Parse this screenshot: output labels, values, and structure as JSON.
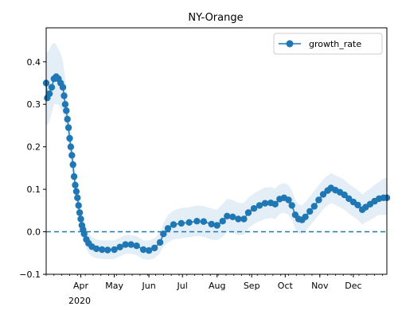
{
  "chart_data": {
    "type": "line",
    "title": "NY-Orange",
    "xlabel": "",
    "ylabel": "",
    "x_axis": {
      "type": "date",
      "range": [
        "2020-03-01",
        "2020-12-31"
      ],
      "ticks": [
        {
          "date": "2020-04-01",
          "label": "Apr"
        },
        {
          "date": "2020-05-01",
          "label": "May"
        },
        {
          "date": "2020-06-01",
          "label": "Jun"
        },
        {
          "date": "2020-07-01",
          "label": "Jul"
        },
        {
          "date": "2020-08-01",
          "label": "Aug"
        },
        {
          "date": "2020-09-01",
          "label": "Sep"
        },
        {
          "date": "2020-10-01",
          "label": "Oct"
        },
        {
          "date": "2020-11-01",
          "label": "Nov"
        },
        {
          "date": "2020-12-01",
          "label": "Dec"
        }
      ],
      "year_label": "2020"
    },
    "ylim": [
      -0.1,
      0.48
    ],
    "yticks": [
      -0.1,
      0.0,
      0.1,
      0.2,
      0.3,
      0.4
    ],
    "ytick_labels": [
      "−0.1",
      "0.0",
      "0.1",
      "0.2",
      "0.3",
      "0.4"
    ],
    "reference_line": {
      "y": 0.0,
      "style": "dashed",
      "color": "#1f77b4"
    },
    "legend": {
      "position": "top-right",
      "entries": [
        "growth_rate"
      ]
    },
    "grid": false,
    "series": [
      {
        "name": "growth_rate",
        "color": "#1f77b4",
        "band_color": "#1f77b4",
        "points": [
          {
            "x": "2020-03-01",
            "y": 0.35,
            "lo": 0.26,
            "hi": 0.43
          },
          {
            "x": "2020-03-02",
            "y": 0.315,
            "lo": 0.25,
            "hi": 0.42
          },
          {
            "x": "2020-03-04",
            "y": 0.325,
            "lo": 0.26,
            "hi": 0.43
          },
          {
            "x": "2020-03-06",
            "y": 0.34,
            "lo": 0.28,
            "hi": 0.44
          },
          {
            "x": "2020-03-08",
            "y": 0.36,
            "lo": 0.3,
            "hi": 0.445
          },
          {
            "x": "2020-03-10",
            "y": 0.365,
            "lo": 0.3,
            "hi": 0.44
          },
          {
            "x": "2020-03-12",
            "y": 0.36,
            "lo": 0.3,
            "hi": 0.43
          },
          {
            "x": "2020-03-14",
            "y": 0.35,
            "lo": 0.29,
            "hi": 0.42
          },
          {
            "x": "2020-03-16",
            "y": 0.34,
            "lo": 0.28,
            "hi": 0.4
          },
          {
            "x": "2020-03-17",
            "y": 0.32,
            "lo": 0.27,
            "hi": 0.38
          },
          {
            "x": "2020-03-18",
            "y": 0.3,
            "lo": 0.25,
            "hi": 0.36
          },
          {
            "x": "2020-03-19",
            "y": 0.285,
            "lo": 0.24,
            "hi": 0.34
          },
          {
            "x": "2020-03-20",
            "y": 0.265,
            "lo": 0.22,
            "hi": 0.32
          },
          {
            "x": "2020-03-21",
            "y": 0.245,
            "lo": 0.2,
            "hi": 0.29
          },
          {
            "x": "2020-03-22",
            "y": 0.22,
            "lo": 0.18,
            "hi": 0.27
          },
          {
            "x": "2020-03-23",
            "y": 0.2,
            "lo": 0.16,
            "hi": 0.245
          },
          {
            "x": "2020-03-24",
            "y": 0.18,
            "lo": 0.14,
            "hi": 0.22
          },
          {
            "x": "2020-03-25",
            "y": 0.158,
            "lo": 0.12,
            "hi": 0.2
          },
          {
            "x": "2020-03-26",
            "y": 0.13,
            "lo": 0.1,
            "hi": 0.17
          },
          {
            "x": "2020-03-27",
            "y": 0.11,
            "lo": 0.08,
            "hi": 0.145
          },
          {
            "x": "2020-03-28",
            "y": 0.095,
            "lo": 0.065,
            "hi": 0.125
          },
          {
            "x": "2020-03-29",
            "y": 0.08,
            "lo": 0.05,
            "hi": 0.11
          },
          {
            "x": "2020-03-30",
            "y": 0.062,
            "lo": 0.035,
            "hi": 0.09
          },
          {
            "x": "2020-03-31",
            "y": 0.045,
            "lo": 0.02,
            "hi": 0.075
          },
          {
            "x": "2020-04-01",
            "y": 0.03,
            "lo": 0.005,
            "hi": 0.058
          },
          {
            "x": "2020-04-02",
            "y": 0.015,
            "lo": -0.008,
            "hi": 0.042
          },
          {
            "x": "2020-04-03",
            "y": 0.005,
            "lo": -0.018,
            "hi": 0.03
          },
          {
            "x": "2020-04-04",
            "y": -0.005,
            "lo": -0.028,
            "hi": 0.02
          },
          {
            "x": "2020-04-06",
            "y": -0.018,
            "lo": -0.04,
            "hi": 0.006
          },
          {
            "x": "2020-04-08",
            "y": -0.027,
            "lo": -0.05,
            "hi": -0.003
          },
          {
            "x": "2020-04-11",
            "y": -0.035,
            "lo": -0.058,
            "hi": -0.012
          },
          {
            "x": "2020-04-15",
            "y": -0.04,
            "lo": -0.062,
            "hi": -0.018
          },
          {
            "x": "2020-04-20",
            "y": -0.042,
            "lo": -0.064,
            "hi": -0.02
          },
          {
            "x": "2020-04-25",
            "y": -0.043,
            "lo": -0.065,
            "hi": -0.02
          },
          {
            "x": "2020-05-01",
            "y": -0.042,
            "lo": -0.064,
            "hi": -0.02
          },
          {
            "x": "2020-05-06",
            "y": -0.036,
            "lo": -0.058,
            "hi": -0.014
          },
          {
            "x": "2020-05-11",
            "y": -0.03,
            "lo": -0.052,
            "hi": -0.008
          },
          {
            "x": "2020-05-16",
            "y": -0.03,
            "lo": -0.052,
            "hi": -0.008
          },
          {
            "x": "2020-05-21",
            "y": -0.033,
            "lo": -0.055,
            "hi": -0.01
          },
          {
            "x": "2020-05-27",
            "y": -0.042,
            "lo": -0.065,
            "hi": -0.02
          },
          {
            "x": "2020-06-01",
            "y": -0.044,
            "lo": -0.066,
            "hi": -0.02
          },
          {
            "x": "2020-06-06",
            "y": -0.038,
            "lo": -0.062,
            "hi": -0.015
          },
          {
            "x": "2020-06-11",
            "y": -0.025,
            "lo": -0.05,
            "hi": 0.0
          },
          {
            "x": "2020-06-14",
            "y": -0.005,
            "lo": -0.035,
            "hi": 0.02
          },
          {
            "x": "2020-06-18",
            "y": 0.008,
            "lo": -0.025,
            "hi": 0.04
          },
          {
            "x": "2020-06-23",
            "y": 0.017,
            "lo": -0.018,
            "hi": 0.05
          },
          {
            "x": "2020-06-30",
            "y": 0.02,
            "lo": -0.015,
            "hi": 0.056
          },
          {
            "x": "2020-07-07",
            "y": 0.022,
            "lo": -0.013,
            "hi": 0.058
          },
          {
            "x": "2020-07-14",
            "y": 0.025,
            "lo": -0.01,
            "hi": 0.062
          },
          {
            "x": "2020-07-20",
            "y": 0.024,
            "lo": -0.012,
            "hi": 0.06
          },
          {
            "x": "2020-07-27",
            "y": 0.018,
            "lo": -0.018,
            "hi": 0.055
          },
          {
            "x": "2020-08-01",
            "y": 0.015,
            "lo": -0.02,
            "hi": 0.052
          },
          {
            "x": "2020-08-06",
            "y": 0.025,
            "lo": -0.012,
            "hi": 0.065
          },
          {
            "x": "2020-08-10",
            "y": 0.037,
            "lo": 0.0,
            "hi": 0.078
          },
          {
            "x": "2020-08-15",
            "y": 0.035,
            "lo": -0.002,
            "hi": 0.075
          },
          {
            "x": "2020-08-20",
            "y": 0.03,
            "lo": -0.008,
            "hi": 0.068
          },
          {
            "x": "2020-08-25",
            "y": 0.03,
            "lo": -0.008,
            "hi": 0.068
          },
          {
            "x": "2020-08-29",
            "y": 0.045,
            "lo": 0.008,
            "hi": 0.08
          },
          {
            "x": "2020-09-03",
            "y": 0.055,
            "lo": 0.018,
            "hi": 0.09
          },
          {
            "x": "2020-09-08",
            "y": 0.062,
            "lo": 0.025,
            "hi": 0.098
          },
          {
            "x": "2020-09-13",
            "y": 0.067,
            "lo": 0.03,
            "hi": 0.104
          },
          {
            "x": "2020-09-18",
            "y": 0.068,
            "lo": 0.032,
            "hi": 0.105
          },
          {
            "x": "2020-09-22",
            "y": 0.065,
            "lo": 0.03,
            "hi": 0.102
          },
          {
            "x": "2020-09-26",
            "y": 0.077,
            "lo": 0.042,
            "hi": 0.112
          },
          {
            "x": "2020-09-30",
            "y": 0.08,
            "lo": 0.045,
            "hi": 0.115
          },
          {
            "x": "2020-10-04",
            "y": 0.075,
            "lo": 0.04,
            "hi": 0.11
          },
          {
            "x": "2020-10-07",
            "y": 0.062,
            "lo": 0.028,
            "hi": 0.098
          },
          {
            "x": "2020-10-10",
            "y": 0.04,
            "lo": 0.006,
            "hi": 0.075
          },
          {
            "x": "2020-10-13",
            "y": 0.03,
            "lo": -0.003,
            "hi": 0.064
          },
          {
            "x": "2020-10-16",
            "y": 0.028,
            "lo": -0.005,
            "hi": 0.062
          },
          {
            "x": "2020-10-19",
            "y": 0.035,
            "lo": 0.002,
            "hi": 0.07
          },
          {
            "x": "2020-10-23",
            "y": 0.048,
            "lo": 0.014,
            "hi": 0.083
          },
          {
            "x": "2020-10-27",
            "y": 0.06,
            "lo": 0.026,
            "hi": 0.096
          },
          {
            "x": "2020-10-31",
            "y": 0.075,
            "lo": 0.04,
            "hi": 0.11
          },
          {
            "x": "2020-11-04",
            "y": 0.088,
            "lo": 0.053,
            "hi": 0.123
          },
          {
            "x": "2020-11-08",
            "y": 0.097,
            "lo": 0.062,
            "hi": 0.132
          },
          {
            "x": "2020-11-11",
            "y": 0.103,
            "lo": 0.068,
            "hi": 0.138
          },
          {
            "x": "2020-11-15",
            "y": 0.098,
            "lo": 0.063,
            "hi": 0.133
          },
          {
            "x": "2020-11-19",
            "y": 0.093,
            "lo": 0.058,
            "hi": 0.128
          },
          {
            "x": "2020-11-23",
            "y": 0.087,
            "lo": 0.052,
            "hi": 0.122
          },
          {
            "x": "2020-11-27",
            "y": 0.078,
            "lo": 0.043,
            "hi": 0.113
          },
          {
            "x": "2020-12-01",
            "y": 0.07,
            "lo": 0.035,
            "hi": 0.105
          },
          {
            "x": "2020-12-05",
            "y": 0.063,
            "lo": 0.028,
            "hi": 0.098
          },
          {
            "x": "2020-12-09",
            "y": 0.052,
            "lo": 0.017,
            "hi": 0.088
          },
          {
            "x": "2020-12-12",
            "y": 0.058,
            "lo": 0.022,
            "hi": 0.094
          },
          {
            "x": "2020-12-16",
            "y": 0.065,
            "lo": 0.028,
            "hi": 0.102
          },
          {
            "x": "2020-12-20",
            "y": 0.072,
            "lo": 0.034,
            "hi": 0.11
          },
          {
            "x": "2020-12-24",
            "y": 0.078,
            "lo": 0.04,
            "hi": 0.118
          },
          {
            "x": "2020-12-28",
            "y": 0.08,
            "lo": 0.04,
            "hi": 0.125
          },
          {
            "x": "2020-12-31",
            "y": 0.08,
            "lo": 0.04,
            "hi": 0.128
          }
        ]
      }
    ]
  }
}
